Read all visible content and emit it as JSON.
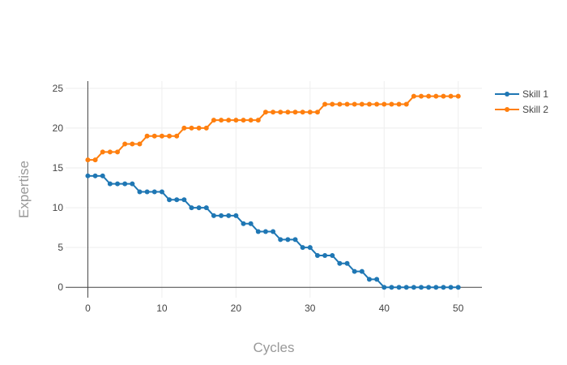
{
  "chart_data": {
    "type": "line",
    "title": "",
    "xlabel": "Cycles",
    "ylabel": "Expertise",
    "xlim": [
      -3,
      53.2
    ],
    "ylim": [
      -1.3,
      25.9
    ],
    "xticks": [
      0,
      10,
      20,
      30,
      40,
      50
    ],
    "yticks": [
      0,
      5,
      10,
      15,
      20,
      25
    ],
    "grid": true,
    "legend_position": "top-right",
    "x": [
      0,
      1,
      2,
      3,
      4,
      5,
      6,
      7,
      8,
      9,
      10,
      11,
      12,
      13,
      14,
      15,
      16,
      17,
      18,
      19,
      20,
      21,
      22,
      23,
      24,
      25,
      26,
      27,
      28,
      29,
      30,
      31,
      32,
      33,
      34,
      35,
      36,
      37,
      38,
      39,
      40,
      41,
      42,
      43,
      44,
      45,
      46,
      47,
      48,
      49,
      50
    ],
    "series": [
      {
        "name": "Skill 1",
        "color": "#1f77b4",
        "values": [
          14,
          14,
          14,
          13,
          13,
          13,
          13,
          12,
          12,
          12,
          12,
          11,
          11,
          11,
          10,
          10,
          10,
          9,
          9,
          9,
          9,
          8,
          8,
          7,
          7,
          7,
          6,
          6,
          6,
          5,
          5,
          4,
          4,
          4,
          3,
          3,
          2,
          2,
          1,
          1,
          0,
          0,
          0,
          0,
          0,
          0,
          0,
          0,
          0,
          0,
          0
        ]
      },
      {
        "name": "Skill 2",
        "color": "#ff7f0e",
        "values": [
          16,
          16,
          17,
          17,
          17,
          18,
          18,
          18,
          19,
          19,
          19,
          19,
          19,
          20,
          20,
          20,
          20,
          21,
          21,
          21,
          21,
          21,
          21,
          21,
          22,
          22,
          22,
          22,
          22,
          22,
          22,
          22,
          23,
          23,
          23,
          23,
          23,
          23,
          23,
          23,
          23,
          23,
          23,
          23,
          24,
          24,
          24,
          24,
          24,
          24,
          24
        ]
      }
    ]
  }
}
